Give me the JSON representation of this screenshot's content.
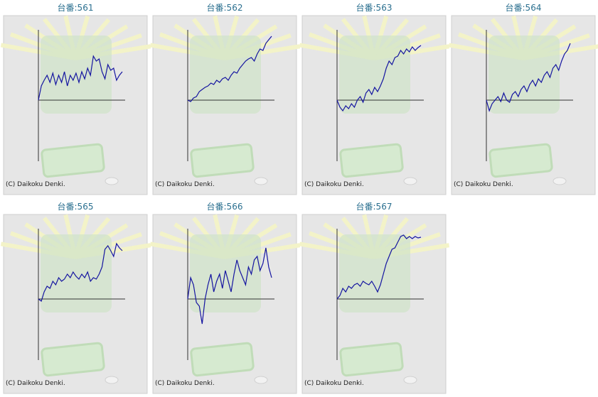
{
  "chart_data": [
    {
      "type": "line",
      "title": "台番:561",
      "annotation": "(C) Daikoku Denki.",
      "color": "#1414a0",
      "ylim": [
        -86,
        99
      ],
      "values": [
        0,
        20,
        28,
        35,
        25,
        38,
        22,
        35,
        25,
        40,
        20,
        35,
        28,
        38,
        25,
        40,
        30,
        45,
        35,
        62,
        55,
        58,
        40,
        30,
        50,
        42,
        45,
        28,
        35,
        40
      ]
    },
    {
      "type": "line",
      "title": "台番:562",
      "annotation": "(C) Daikoku Denki.",
      "color": "#1414a0",
      "ylim": [
        -86,
        99
      ],
      "values": [
        0,
        -2,
        3,
        5,
        12,
        15,
        18,
        20,
        24,
        22,
        28,
        25,
        30,
        32,
        28,
        35,
        40,
        38,
        45,
        50,
        55,
        58,
        60,
        55,
        65,
        72,
        70,
        80,
        85,
        90
      ]
    },
    {
      "type": "line",
      "title": "台番:563",
      "annotation": "(C) Daikoku Denki.",
      "color": "#1414a0",
      "ylim": [
        -86,
        99
      ],
      "values": [
        0,
        -10,
        -15,
        -8,
        -12,
        -5,
        -10,
        0,
        5,
        -3,
        10,
        15,
        8,
        18,
        12,
        20,
        30,
        45,
        55,
        50,
        60,
        62,
        70,
        65,
        72,
        68,
        75,
        70,
        74,
        77
      ]
    },
    {
      "type": "line",
      "title": "台番:564",
      "annotation": "(C) Daikoku Denki.",
      "color": "#1414a0",
      "ylim": [
        -86,
        99
      ],
      "values": [
        0,
        -15,
        -5,
        0,
        5,
        -2,
        10,
        0,
        -3,
        8,
        12,
        5,
        15,
        20,
        12,
        22,
        28,
        20,
        30,
        25,
        35,
        40,
        32,
        45,
        50,
        42,
        55,
        65,
        70,
        80
      ]
    },
    {
      "type": "line",
      "title": "台番:565",
      "annotation": "(C) Daikoku Denki.",
      "color": "#1414a0",
      "ylim": [
        -86,
        99
      ],
      "values": [
        0,
        -3,
        10,
        18,
        15,
        25,
        20,
        30,
        25,
        28,
        35,
        30,
        38,
        32,
        28,
        35,
        30,
        38,
        25,
        30,
        28,
        35,
        45,
        70,
        75,
        68,
        60,
        78,
        72,
        68
      ]
    },
    {
      "type": "line",
      "title": "台番:566",
      "annotation": "(C) Daikoku Denki.",
      "color": "#1414a0",
      "ylim": [
        -86,
        99
      ],
      "values": [
        0,
        30,
        20,
        -5,
        -10,
        -35,
        0,
        20,
        35,
        10,
        25,
        35,
        15,
        40,
        25,
        10,
        35,
        55,
        40,
        30,
        20,
        45,
        35,
        55,
        60,
        40,
        50,
        72,
        45,
        30
      ]
    },
    {
      "type": "line",
      "title": "台番:567",
      "annotation": "(C) Daikoku Denki.",
      "color": "#1414a0",
      "ylim": [
        -86,
        99
      ],
      "values": [
        0,
        5,
        15,
        10,
        18,
        15,
        20,
        22,
        18,
        25,
        22,
        20,
        25,
        18,
        10,
        20,
        35,
        50,
        60,
        70,
        72,
        80,
        88,
        90,
        85,
        88,
        85,
        88,
        86,
        87
      ]
    }
  ]
}
